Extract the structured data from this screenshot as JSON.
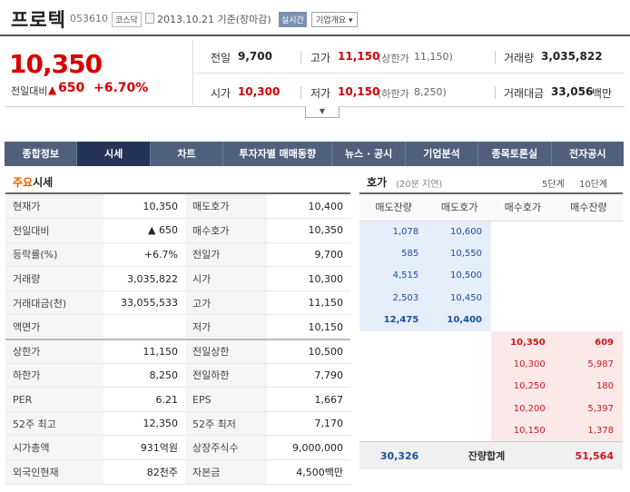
{
  "header": {
    "name": "프로텍",
    "code": "053610",
    "market": "코스닥",
    "date": "2013.10.21 기준(장마감)",
    "realtime": "실시간",
    "company_info": "기업개요"
  },
  "summary": {
    "price": "10,350",
    "change_label": "전일대비",
    "change_arrow": "▲",
    "change": "650",
    "change_pct": "+6.70%",
    "prev_label": "전일",
    "prev": "9,700",
    "high_label": "고가",
    "high": "11,150",
    "upper_label": "(상한가",
    "upper": "11,150)",
    "vol_label": "거래량",
    "vol": "3,035,822",
    "open_label": "시가",
    "open": "10,300",
    "low_label": "저가",
    "low": "10,150",
    "lower_label": "(하한가",
    "lower": "8,250)",
    "amt_label": "거래대금",
    "amt": "33,056",
    "amt_unit": "백만",
    "colors": {
      "up": "#d50000"
    }
  },
  "tabs": [
    "종합정보",
    "시세",
    "차트",
    "투자자별 매매동향",
    "뉴스 · 공시",
    "기업분석",
    "종목토론실",
    "전자공시"
  ],
  "main_quote": {
    "title_a": "주요",
    "title_b": "시세"
  },
  "quote_rows": [
    [
      "현재가",
      "10,350",
      "매도호가",
      "10,400"
    ],
    [
      "전일대비",
      "▲ 650",
      "매수호가",
      "10,350"
    ],
    [
      "등락률(%)",
      "+6.7%",
      "전일가",
      "9,700"
    ],
    [
      "거래량",
      "3,035,822",
      "시가",
      "10,300"
    ],
    [
      "거래대금(천)",
      "33,055,533",
      "고가",
      "11,150"
    ],
    [
      "액면가",
      "",
      "저가",
      "10,150"
    ],
    [
      "상한가",
      "11,150",
      "전일상한",
      "10,500"
    ],
    [
      "하한가",
      "8,250",
      "전일하한",
      "7,790"
    ],
    [
      "PER",
      "6.21",
      "EPS",
      "1,667"
    ],
    [
      "52주 최고",
      "12,350",
      "52주 최저",
      "7,170"
    ],
    [
      "시가총액",
      "931억원",
      "상장주식수",
      "9,000,000"
    ],
    [
      "외국인현재",
      "82천주",
      "자본금",
      "4,500백만"
    ]
  ],
  "orderbook": {
    "title": "호가",
    "delay": "(20분 지연)",
    "level5": "5단계",
    "level10": "10단계",
    "headers": [
      "매도잔량",
      "매도호가",
      "매수호가",
      "매수잔량"
    ],
    "asks": [
      [
        "1,078",
        "10,600"
      ],
      [
        "585",
        "10,550"
      ],
      [
        "4,515",
        "10,500"
      ],
      [
        "2,503",
        "10,450"
      ],
      [
        "12,475",
        "10,400"
      ]
    ],
    "bids": [
      [
        "10,350",
        "609"
      ],
      [
        "10,300",
        "5,987"
      ],
      [
        "10,250",
        "180"
      ],
      [
        "10,200",
        "5,397"
      ],
      [
        "10,150",
        "1,378"
      ]
    ],
    "total_ask": "30,326",
    "total_label": "잔량합계",
    "total_bid": "51,564"
  }
}
